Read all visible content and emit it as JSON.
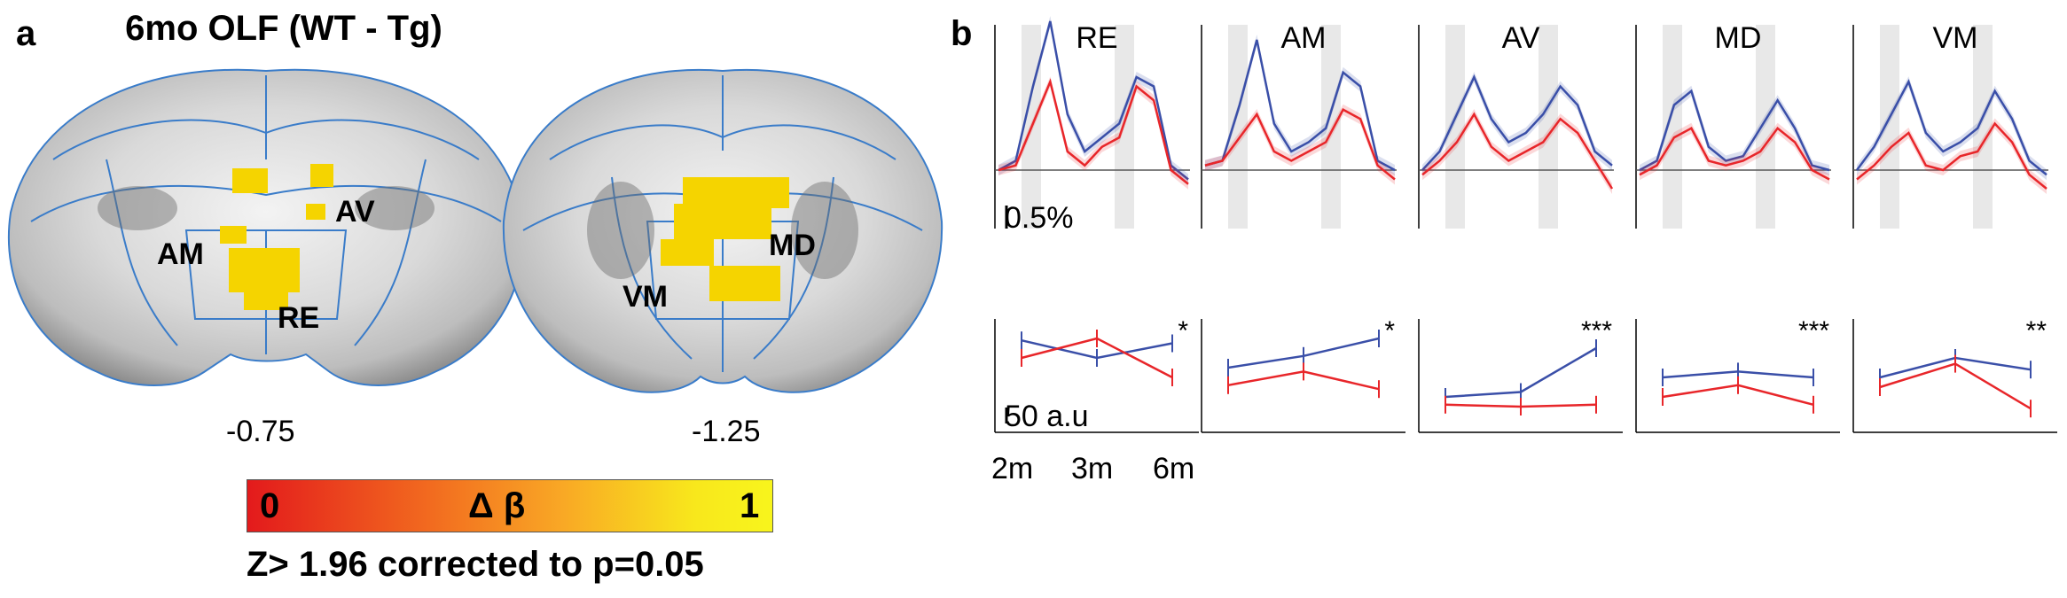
{
  "panel_a": {
    "letter": "a",
    "title": "6mo OLF (WT - Tg)",
    "slices": [
      {
        "coordinate": "-0.75",
        "labels": [
          "AM",
          "AV",
          "RE"
        ]
      },
      {
        "coordinate": "-1.25",
        "labels": [
          "MD",
          "VM"
        ]
      }
    ],
    "colorbar": {
      "min_label": "0",
      "max_label": "1",
      "quantity": "Δ β",
      "colors": [
        "#e31a1c",
        "#f26b1f",
        "#f9a825",
        "#f8e71c"
      ]
    },
    "threshold": "Z> 1.96 corrected to p=0.05",
    "activation_color": "#f5d400",
    "atlas_line_color": "#3a7cc9"
  },
  "panel_b": {
    "letter": "b",
    "top_scale_label": "0.5%",
    "bottom_scale_label": "50 a.u",
    "x_tick_labels": [
      "2m",
      "3m",
      "6m"
    ]
  },
  "chart_data": [
    {
      "type": "line",
      "title": "RE",
      "series": [
        {
          "color": "#3a4fa8",
          "values": [
            0.0,
            0.1,
            0.9,
            1.6,
            0.6,
            0.2,
            0.35,
            0.5,
            1.0,
            0.9,
            0.05,
            -0.1
          ]
        },
        {
          "color": "#e8262a",
          "values": [
            0.0,
            0.05,
            0.5,
            0.95,
            0.2,
            0.05,
            0.25,
            0.35,
            0.9,
            0.75,
            0.0,
            -0.15
          ]
        }
      ]
    },
    {
      "type": "line",
      "title": "AM",
      "series": [
        {
          "color": "#3a4fa8",
          "values": [
            0.05,
            0.1,
            0.7,
            1.4,
            0.5,
            0.2,
            0.3,
            0.45,
            1.05,
            0.9,
            0.1,
            0.0
          ]
        },
        {
          "color": "#e8262a",
          "values": [
            0.05,
            0.1,
            0.35,
            0.6,
            0.2,
            0.1,
            0.2,
            0.3,
            0.65,
            0.55,
            0.05,
            -0.1
          ]
        }
      ]
    },
    {
      "type": "line",
      "title": "AV",
      "series": [
        {
          "color": "#3a4fa8",
          "values": [
            0.0,
            0.2,
            0.6,
            1.0,
            0.55,
            0.3,
            0.4,
            0.6,
            0.9,
            0.7,
            0.2,
            0.05
          ]
        },
        {
          "color": "#e8262a",
          "values": [
            -0.05,
            0.1,
            0.3,
            0.6,
            0.25,
            0.1,
            0.2,
            0.3,
            0.55,
            0.4,
            0.1,
            -0.2
          ]
        }
      ]
    },
    {
      "type": "line",
      "title": "MD",
      "series": [
        {
          "color": "#3a4fa8",
          "values": [
            0.0,
            0.1,
            0.7,
            0.85,
            0.25,
            0.1,
            0.15,
            0.45,
            0.75,
            0.45,
            0.05,
            0.0
          ]
        },
        {
          "color": "#e8262a",
          "values": [
            -0.05,
            0.05,
            0.35,
            0.45,
            0.1,
            0.05,
            0.1,
            0.2,
            0.45,
            0.3,
            0.0,
            -0.1
          ]
        }
      ]
    },
    {
      "type": "line",
      "title": "VM",
      "series": [
        {
          "color": "#3a4fa8",
          "values": [
            0.0,
            0.25,
            0.6,
            0.95,
            0.4,
            0.2,
            0.3,
            0.45,
            0.85,
            0.55,
            0.1,
            -0.05
          ]
        },
        {
          "color": "#e8262a",
          "values": [
            -0.1,
            0.05,
            0.25,
            0.4,
            0.05,
            0.0,
            0.15,
            0.2,
            0.5,
            0.3,
            -0.05,
            -0.2
          ]
        }
      ]
    },
    {
      "type": "line",
      "title": "RE",
      "significance": "*",
      "categories": [
        "2m",
        "3m",
        "6m"
      ],
      "series": [
        {
          "color": "#3a4fa8",
          "values": [
            78,
            60,
            75
          ]
        },
        {
          "color": "#e8262a",
          "values": [
            60,
            80,
            40
          ]
        }
      ]
    },
    {
      "type": "line",
      "title": "AM",
      "significance": "*",
      "categories": [
        "2m",
        "3m",
        "6m"
      ],
      "series": [
        {
          "color": "#3a4fa8",
          "values": [
            50,
            62,
            80
          ]
        },
        {
          "color": "#e8262a",
          "values": [
            32,
            46,
            28
          ]
        }
      ]
    },
    {
      "type": "line",
      "title": "AV",
      "significance": "***",
      "categories": [
        "2m",
        "3m",
        "6m"
      ],
      "series": [
        {
          "color": "#3a4fa8",
          "values": [
            20,
            25,
            70
          ]
        },
        {
          "color": "#e8262a",
          "values": [
            12,
            10,
            12
          ]
        }
      ]
    },
    {
      "type": "line",
      "title": "MD",
      "significance": "***",
      "categories": [
        "2m",
        "3m",
        "6m"
      ],
      "series": [
        {
          "color": "#3a4fa8",
          "values": [
            40,
            46,
            40
          ]
        },
        {
          "color": "#e8262a",
          "values": [
            20,
            32,
            12
          ]
        }
      ]
    },
    {
      "type": "line",
      "title": "VM",
      "significance": "**",
      "categories": [
        "2m",
        "3m",
        "6m"
      ],
      "series": [
        {
          "color": "#3a4fa8",
          "values": [
            40,
            60,
            48
          ]
        },
        {
          "color": "#e8262a",
          "values": [
            30,
            54,
            8
          ]
        }
      ]
    }
  ]
}
